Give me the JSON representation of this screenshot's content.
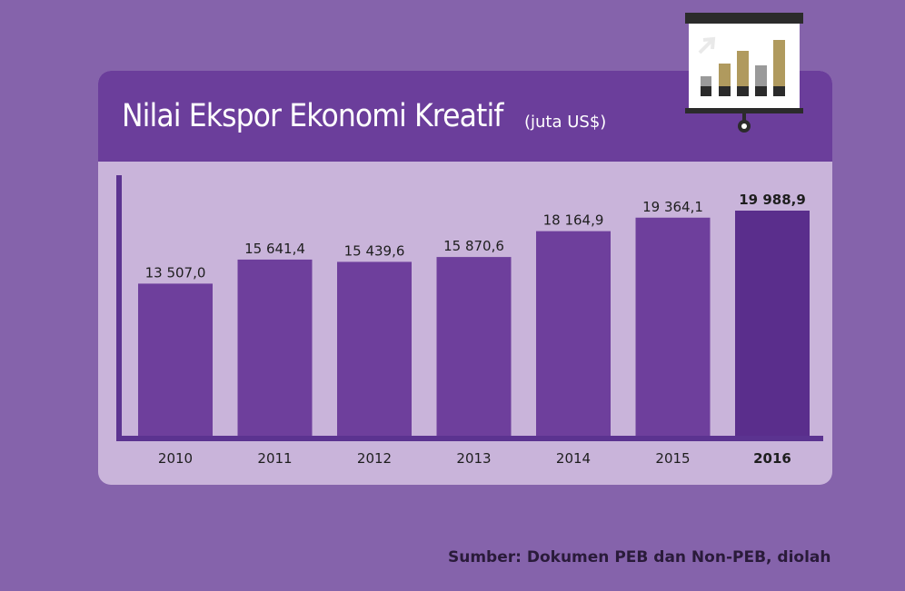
{
  "header": {
    "title": "Nilai Ekspor Ekonomi Kreatif",
    "unit": "(juta US$)"
  },
  "footer": {
    "source": "Sumber: Dokumen PEB dan Non-PEB, diolah"
  },
  "colors": {
    "background": "#8563ab",
    "header": "#6b3e9b",
    "panel": "#c9b4da",
    "bar": "#6e3f9c",
    "bar_highlight": "#5a2e8c",
    "axis": "#5b3390"
  },
  "chart_data": {
    "type": "bar",
    "categories": [
      "2010",
      "2011",
      "2012",
      "2013",
      "2014",
      "2015",
      "2016"
    ],
    "values": [
      13507.0,
      15641.4,
      15439.6,
      15870.6,
      18164.9,
      19364.1,
      19988.9
    ],
    "value_labels": [
      "13 507,0",
      "15 641,4",
      "15 439,6",
      "15 870,6",
      "18 164,9",
      "19 364,1",
      "19 988,9"
    ],
    "highlight_index": 6,
    "title": "Nilai Ekspor Ekonomi Kreatif",
    "ylabel": "(juta US$)",
    "xlabel": "",
    "grid": false,
    "legend": "none"
  }
}
